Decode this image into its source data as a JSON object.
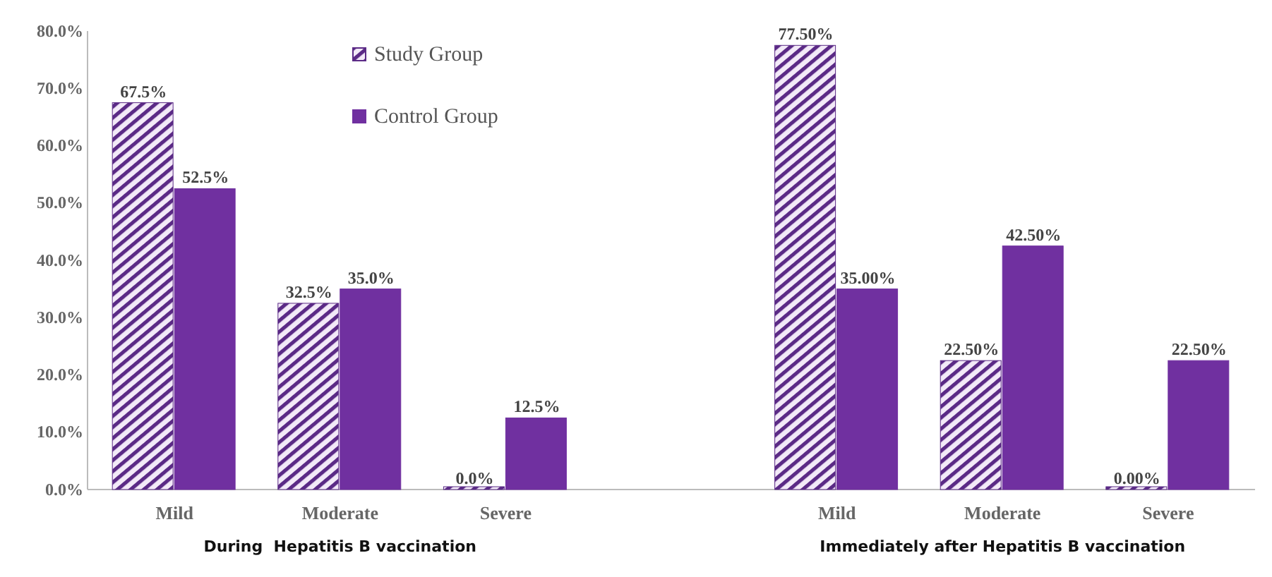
{
  "chart_data": {
    "type": "bar",
    "categories": [
      "Mild",
      "Moderate",
      "Severe",
      null,
      "Mild",
      "Moderate",
      "Severe"
    ],
    "series": [
      {
        "name": "Study Group",
        "color": "#5b2a86",
        "values": [
          67.5,
          32.5,
          0,
          null,
          77.5,
          22.5,
          0
        ],
        "value_labels": [
          "67.5%",
          "32.5%",
          "0.0%",
          null,
          "77.50%",
          "22.50%",
          "0.00%"
        ]
      },
      {
        "name": "Control Group",
        "color": "#7030a0",
        "values": [
          52.5,
          35,
          12.5,
          null,
          35,
          42.5,
          22.5
        ],
        "value_labels": [
          "52.5%",
          "35.0%",
          "12.5%",
          null,
          "35.00%",
          "42.50%",
          "22.50%"
        ]
      }
    ],
    "ylim": [
      0,
      80
    ],
    "yticks": [
      {
        "value": 0,
        "label": "0.0%"
      },
      {
        "value": 10,
        "label": "10.0%"
      },
      {
        "value": 20,
        "label": "20.0%"
      },
      {
        "value": 30,
        "label": "30.0%"
      },
      {
        "value": 40,
        "label": "40.0%"
      },
      {
        "value": 50,
        "label": "50.0%"
      },
      {
        "value": 60,
        "label": "60.0%"
      },
      {
        "value": 70,
        "label": "70.0%"
      },
      {
        "value": 80,
        "label": "80.0%"
      }
    ],
    "legend": "top",
    "annotations": [
      "During  Hepatitis B vaccination",
      "Immediately after Hepatitis B vaccination"
    ]
  }
}
